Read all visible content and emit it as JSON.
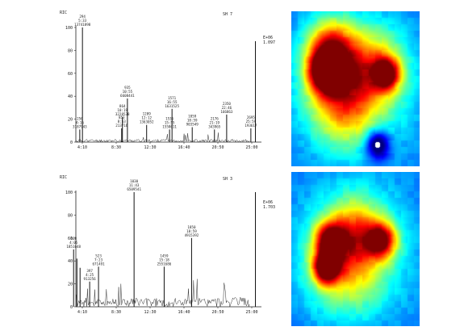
{
  "chart_data": [
    {
      "type": "line",
      "panel_id": "RIC",
      "scan_label": "SH 7",
      "ylabel_top": "RIC",
      "yticks": [
        0,
        20,
        40,
        60,
        80,
        100
      ],
      "xtick_labels": [
        "4:10",
        "8:30",
        "12:30",
        "16:40",
        "20:50",
        "25:00"
      ],
      "scan_range": [
        200,
        2800
      ],
      "end_annotation": [
        "E+06",
        "1.097"
      ],
      "baseline_noise": 2.5,
      "peaks": [
        {
          "scan": 256,
          "y": 11,
          "label": [
            "256",
            "4:16",
            "3187943"
          ]
        },
        {
          "scan": 294,
          "y": 100,
          "label": [
            "294",
            "5:33",
            "13741898"
          ]
        },
        {
          "scan": 853,
          "y": 12,
          "label": [
            "853",
            "8:53",
            "213716"
          ]
        },
        {
          "scan": 864,
          "y": 22,
          "label": [
            "864",
            "10:19",
            "3228538"
          ]
        },
        {
          "scan": 935,
          "y": 38,
          "label": [
            "935",
            "10:55",
            "6608441"
          ]
        },
        {
          "scan": 1209,
          "y": 15,
          "label": [
            "1209",
            "12:12",
            "1363052"
          ]
        },
        {
          "scan": 1536,
          "y": 11,
          "label": [
            "1536",
            "15:55",
            "1558611"
          ]
        },
        {
          "scan": 1571,
          "y": 29,
          "label": [
            "1571",
            "16:55",
            "1631525"
          ]
        },
        {
          "scan": 1859,
          "y": 13,
          "label": [
            "1859",
            "18:59",
            "903549"
          ]
        },
        {
          "scan": 2176,
          "y": 11,
          "label": [
            "2176",
            "21:19",
            "343965"
          ]
        },
        {
          "scan": 2350,
          "y": 24,
          "label": [
            "2350",
            "22:46",
            "166863"
          ]
        },
        {
          "scan": 2695,
          "y": 12,
          "label": [
            "2695",
            "25:59",
            "193617"
          ]
        },
        {
          "scan": 2760,
          "y": 88,
          "label": []
        }
      ]
    },
    {
      "type": "line",
      "panel_id": "RIC",
      "scan_label": "SH 3",
      "ylabel_top": "RIC",
      "yticks": [
        0,
        20,
        40,
        60,
        80,
        100
      ],
      "xtick_labels": [
        "4:10",
        "8:30",
        "12:30",
        "16:40",
        "20:50",
        "25:00"
      ],
      "scan_range": [
        200,
        2800
      ],
      "end_annotation": [
        "E+06",
        "1.703"
      ],
      "baseline_noise": 8,
      "peaks": [
        {
          "scan": 168,
          "y": 50,
          "label": [
            "168",
            "4:05",
            "1851648"
          ]
        },
        {
          "scan": 215,
          "y": 42,
          "label": []
        },
        {
          "scan": 260,
          "y": 34,
          "label": []
        },
        {
          "scan": 397,
          "y": 22,
          "label": [
            "397",
            "4:25",
            "913256"
          ]
        },
        {
          "scan": 523,
          "y": 35,
          "label": [
            "523",
            "7:23",
            "671491"
          ]
        },
        {
          "scan": 1030,
          "y": 100,
          "label": [
            "1030",
            "11:43",
            "6509541"
          ]
        },
        {
          "scan": 1459,
          "y": 35,
          "label": [
            "1459",
            "15:18",
            "2551686"
          ]
        },
        {
          "scan": 1850,
          "y": 60,
          "label": [
            "1850",
            "18:59",
            "4915392"
          ]
        },
        {
          "scan": 2760,
          "y": 100,
          "label": []
        }
      ]
    }
  ],
  "heatmaps": [
    {
      "type": "heatmap",
      "blobs": [
        {
          "cx": 0.27,
          "cy": 0.38,
          "r": 0.09,
          "v": 1.0
        },
        {
          "cx": 0.33,
          "cy": 0.32,
          "r": 0.16,
          "v": 0.6
        },
        {
          "cx": 0.74,
          "cy": 0.4,
          "r": 0.07,
          "v": 0.85
        },
        {
          "cx": 0.65,
          "cy": 0.36,
          "r": 0.16,
          "v": 0.55
        },
        {
          "cx": 0.4,
          "cy": 0.6,
          "r": 0.18,
          "v": 0.6
        },
        {
          "cx": 0.52,
          "cy": 0.48,
          "r": 0.35,
          "v": 0.45
        },
        {
          "cx": 0.3,
          "cy": 0.2,
          "r": 0.12,
          "v": 0.5
        }
      ],
      "coldspot": {
        "cx": 0.67,
        "cy": 0.86,
        "r": 0.1
      }
    },
    {
      "type": "heatmap",
      "blobs": [
        {
          "cx": 0.27,
          "cy": 0.62,
          "r": 0.07,
          "v": 1.0
        },
        {
          "cx": 0.3,
          "cy": 0.44,
          "r": 0.08,
          "v": 0.85
        },
        {
          "cx": 0.7,
          "cy": 0.44,
          "r": 0.08,
          "v": 0.85
        },
        {
          "cx": 0.5,
          "cy": 0.38,
          "r": 0.15,
          "v": 0.55
        },
        {
          "cx": 0.42,
          "cy": 0.6,
          "r": 0.2,
          "v": 0.55
        },
        {
          "cx": 0.5,
          "cy": 0.5,
          "r": 0.35,
          "v": 0.42
        }
      ],
      "coldspot": null
    }
  ]
}
